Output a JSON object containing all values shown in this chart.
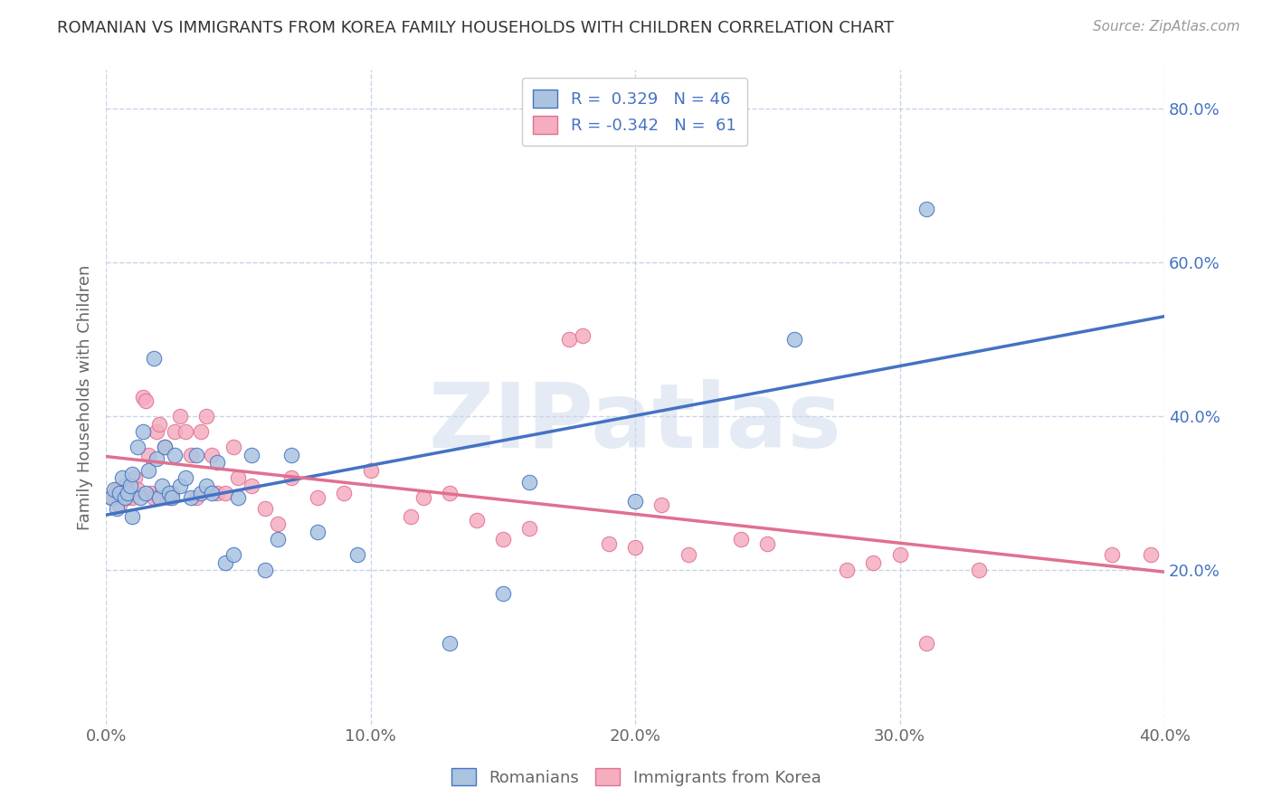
{
  "title": "ROMANIAN VS IMMIGRANTS FROM KOREA FAMILY HOUSEHOLDS WITH CHILDREN CORRELATION CHART",
  "source": "Source: ZipAtlas.com",
  "ylabel": "Family Households with Children",
  "xlim": [
    0.0,
    0.4
  ],
  "ylim": [
    0.0,
    0.85
  ],
  "xtick_labels": [
    "0.0%",
    "",
    "10.0%",
    "",
    "20.0%",
    "",
    "30.0%",
    "",
    "40.0%"
  ],
  "xtick_vals": [
    0.0,
    0.05,
    0.1,
    0.15,
    0.2,
    0.25,
    0.3,
    0.35,
    0.4
  ],
  "xtick_labels_shown": [
    "0.0%",
    "10.0%",
    "20.0%",
    "30.0%",
    "40.0%"
  ],
  "xtick_vals_shown": [
    0.0,
    0.1,
    0.2,
    0.3,
    0.4
  ],
  "ytick_labels": [
    "20.0%",
    "40.0%",
    "60.0%",
    "80.0%"
  ],
  "ytick_vals": [
    0.2,
    0.4,
    0.6,
    0.8
  ],
  "romanian_R": 0.329,
  "romanian_N": 46,
  "korea_R": -0.342,
  "korea_N": 61,
  "romanian_color": "#aac4e0",
  "romanian_line_color": "#4472c4",
  "korea_color": "#f5adc0",
  "korea_line_color": "#e07090",
  "watermark": "ZIPatlas",
  "background_color": "#ffffff",
  "grid_color": "#c8d4e8",
  "romanian_x": [
    0.002,
    0.003,
    0.004,
    0.005,
    0.006,
    0.007,
    0.008,
    0.009,
    0.01,
    0.01,
    0.012,
    0.013,
    0.014,
    0.015,
    0.016,
    0.018,
    0.019,
    0.02,
    0.021,
    0.022,
    0.024,
    0.025,
    0.026,
    0.028,
    0.03,
    0.032,
    0.034,
    0.036,
    0.038,
    0.04,
    0.042,
    0.045,
    0.048,
    0.05,
    0.055,
    0.06,
    0.065,
    0.07,
    0.08,
    0.095,
    0.13,
    0.15,
    0.16,
    0.2,
    0.26,
    0.31
  ],
  "romanian_y": [
    0.295,
    0.305,
    0.28,
    0.3,
    0.32,
    0.295,
    0.3,
    0.31,
    0.27,
    0.325,
    0.36,
    0.295,
    0.38,
    0.3,
    0.33,
    0.475,
    0.345,
    0.295,
    0.31,
    0.36,
    0.3,
    0.295,
    0.35,
    0.31,
    0.32,
    0.295,
    0.35,
    0.3,
    0.31,
    0.3,
    0.34,
    0.21,
    0.22,
    0.295,
    0.35,
    0.2,
    0.24,
    0.35,
    0.25,
    0.22,
    0.105,
    0.17,
    0.315,
    0.29,
    0.5,
    0.67
  ],
  "korea_x": [
    0.002,
    0.003,
    0.004,
    0.005,
    0.006,
    0.007,
    0.008,
    0.009,
    0.01,
    0.011,
    0.012,
    0.014,
    0.015,
    0.016,
    0.017,
    0.018,
    0.019,
    0.02,
    0.022,
    0.024,
    0.025,
    0.026,
    0.028,
    0.03,
    0.032,
    0.034,
    0.036,
    0.038,
    0.04,
    0.042,
    0.045,
    0.048,
    0.05,
    0.055,
    0.06,
    0.065,
    0.07,
    0.08,
    0.09,
    0.1,
    0.115,
    0.12,
    0.13,
    0.14,
    0.15,
    0.16,
    0.175,
    0.18,
    0.19,
    0.2,
    0.21,
    0.22,
    0.24,
    0.25,
    0.28,
    0.29,
    0.3,
    0.31,
    0.33,
    0.38,
    0.395
  ],
  "korea_y": [
    0.295,
    0.295,
    0.305,
    0.285,
    0.3,
    0.31,
    0.295,
    0.305,
    0.295,
    0.32,
    0.305,
    0.425,
    0.42,
    0.35,
    0.3,
    0.295,
    0.38,
    0.39,
    0.36,
    0.295,
    0.3,
    0.38,
    0.4,
    0.38,
    0.35,
    0.295,
    0.38,
    0.4,
    0.35,
    0.3,
    0.3,
    0.36,
    0.32,
    0.31,
    0.28,
    0.26,
    0.32,
    0.295,
    0.3,
    0.33,
    0.27,
    0.295,
    0.3,
    0.265,
    0.24,
    0.255,
    0.5,
    0.505,
    0.235,
    0.23,
    0.285,
    0.22,
    0.24,
    0.235,
    0.2,
    0.21,
    0.22,
    0.105,
    0.2,
    0.22,
    0.22
  ],
  "blue_line_y0": 0.272,
  "blue_line_y1": 0.53,
  "pink_line_y0": 0.348,
  "pink_line_y1": 0.198
}
